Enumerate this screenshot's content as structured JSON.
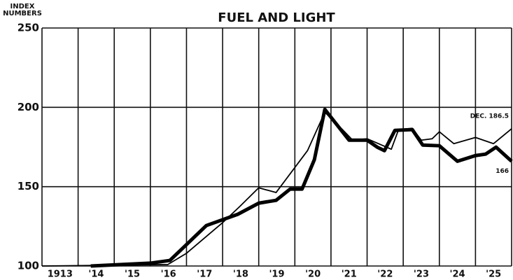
{
  "chart_data": {
    "type": "line",
    "title": "FUEL AND LIGHT",
    "y_label": [
      "INDEX",
      "NUMBERS"
    ],
    "year_labels": [
      "1913",
      "'14",
      "'15",
      "'16",
      "'17",
      "'18",
      "'19",
      "'20",
      "'21",
      "'22",
      "'23",
      "'24",
      "'25"
    ],
    "xlim": [
      1913,
      1926
    ],
    "xticks": [
      1913,
      1914,
      1915,
      1916,
      1917,
      1918,
      1919,
      1920,
      1921,
      1922,
      1923,
      1924,
      1925,
      1926
    ],
    "ylim": [
      100,
      250
    ],
    "yticks": [
      100,
      150,
      200,
      250
    ],
    "grid": true,
    "series": [
      {
        "name": "166",
        "color": "#000",
        "width": 5,
        "x": [
          1914.35,
          1916.0,
          1916.54,
          1917.55,
          1918.42,
          1919.0,
          1919.48,
          1919.87,
          1920.2,
          1920.54,
          1920.83,
          1921.5,
          1922.0,
          1922.28,
          1922.48,
          1922.77,
          1923.25,
          1923.54,
          1924.0,
          1924.5,
          1925.0,
          1925.28,
          1925.57,
          1926.0
        ],
        "values": [
          100,
          101.8,
          103.5,
          125.5,
          132.6,
          139.6,
          141.4,
          148.5,
          148.5,
          167,
          198.7,
          179.3,
          179.3,
          174.9,
          172.7,
          185.5,
          186,
          176.2,
          175.8,
          166,
          169.6,
          170.5,
          174.9,
          166
        ]
      },
      {
        "name": "DEC. 186.5",
        "color": "#000",
        "width": 1.8,
        "x": [
          1913,
          1916.48,
          1917,
          1918,
          1918.47,
          1919.0,
          1919.48,
          1920.35,
          1920.83,
          1921.32,
          1921.6,
          1922.0,
          1922.67,
          1922.87,
          1923.25,
          1923.5,
          1923.8,
          1924.0,
          1924.4,
          1925.0,
          1925.5,
          1926
        ],
        "values": [
          100,
          100.9,
          108,
          127.3,
          137.4,
          149.3,
          146.3,
          172.7,
          196.9,
          185.9,
          179.3,
          180.2,
          173.6,
          185.9,
          186.8,
          179.3,
          180.2,
          184.6,
          177.1,
          181,
          177.1,
          186.5
        ]
      }
    ]
  }
}
